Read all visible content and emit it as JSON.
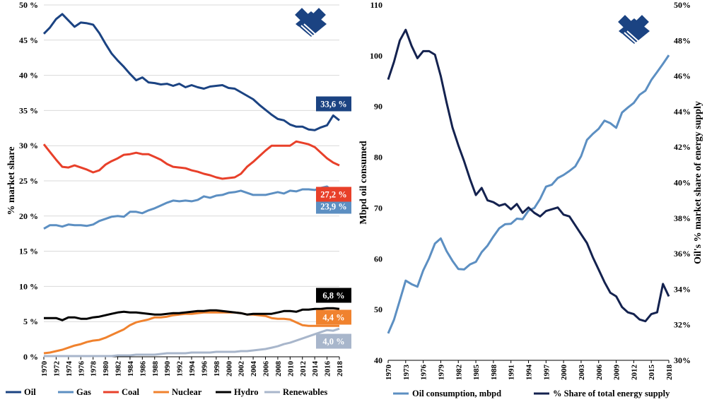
{
  "chart_data": [
    {
      "type": "line",
      "ylabel": "% market share",
      "ylim": [
        0,
        50
      ],
      "yticks": [
        "0 %",
        "5 %",
        "10 %",
        "15 %",
        "20 %",
        "25 %",
        "30 %",
        "35 %",
        "40 %",
        "45 %",
        "50 %"
      ],
      "xticks": [
        "1970",
        "1972",
        "1974",
        "1976",
        "1978",
        "1980",
        "1982",
        "1984",
        "1986",
        "1988",
        "1990",
        "1992",
        "1994",
        "1996",
        "1998",
        "2000",
        "2002",
        "2004",
        "2006",
        "2008",
        "2010",
        "2012",
        "2014",
        "2016",
        "2018"
      ],
      "x": [
        1970,
        1971,
        1972,
        1973,
        1974,
        1975,
        1976,
        1977,
        1978,
        1979,
        1980,
        1981,
        1982,
        1983,
        1984,
        1985,
        1986,
        1987,
        1988,
        1989,
        1990,
        1991,
        1992,
        1993,
        1994,
        1995,
        1996,
        1997,
        1998,
        1999,
        2000,
        2001,
        2002,
        2003,
        2004,
        2005,
        2006,
        2007,
        2008,
        2009,
        2010,
        2011,
        2012,
        2013,
        2014,
        2015,
        2016,
        2017,
        2018
      ],
      "series": [
        {
          "name": "Oil",
          "color": "#1b4382",
          "end_label": "33,6 %",
          "values": [
            45.9,
            46.8,
            48.0,
            48.7,
            47.8,
            46.9,
            47.5,
            47.4,
            47.2,
            46.0,
            44.5,
            43.1,
            42.1,
            41.2,
            40.2,
            39.3,
            39.7,
            39.0,
            38.9,
            38.7,
            38.8,
            38.5,
            38.8,
            38.3,
            38.6,
            38.3,
            38.1,
            38.4,
            38.5,
            38.6,
            38.2,
            38.1,
            37.6,
            37.1,
            36.6,
            35.8,
            35.1,
            34.4,
            33.8,
            33.6,
            33.0,
            32.7,
            32.7,
            32.3,
            32.2,
            32.6,
            32.9,
            34.3,
            33.6
          ]
        },
        {
          "name": "Gas",
          "color": "#5c8fc2",
          "end_label": "23,9 %",
          "values": [
            18.2,
            18.7,
            18.7,
            18.5,
            18.8,
            18.7,
            18.7,
            18.6,
            18.8,
            19.3,
            19.6,
            19.9,
            20.0,
            19.9,
            20.6,
            20.6,
            20.4,
            20.8,
            21.1,
            21.5,
            21.9,
            22.2,
            22.1,
            22.2,
            22.1,
            22.3,
            22.8,
            22.6,
            22.9,
            23.0,
            23.3,
            23.4,
            23.6,
            23.3,
            23.0,
            23.0,
            23.0,
            23.2,
            23.4,
            23.2,
            23.6,
            23.5,
            23.8,
            23.8,
            23.7,
            24.0,
            24.2,
            23.5,
            23.9
          ]
        },
        {
          "name": "Coal",
          "color": "#e8402a",
          "end_label": "27,2 %",
          "values": [
            30.2,
            29.1,
            28.0,
            27.0,
            26.9,
            27.2,
            26.9,
            26.6,
            26.2,
            26.5,
            27.3,
            27.8,
            28.2,
            28.7,
            28.8,
            29.0,
            28.8,
            28.8,
            28.4,
            28.0,
            27.4,
            27.0,
            26.9,
            26.8,
            26.5,
            26.3,
            26.0,
            25.8,
            25.5,
            25.3,
            25.4,
            25.5,
            26.0,
            27.0,
            27.7,
            28.5,
            29.3,
            30.0,
            30.0,
            30.0,
            30.0,
            30.6,
            30.4,
            30.2,
            29.8,
            29.0,
            28.2,
            27.6,
            27.2
          ]
        },
        {
          "name": "Nuclear",
          "color": "#f0822e",
          "end_label": "4,4 %",
          "values": [
            0.5,
            0.6,
            0.8,
            1.0,
            1.3,
            1.6,
            1.8,
            2.1,
            2.3,
            2.4,
            2.7,
            3.1,
            3.5,
            3.9,
            4.5,
            4.9,
            5.1,
            5.3,
            5.6,
            5.6,
            5.7,
            5.9,
            6.0,
            6.1,
            6.1,
            6.2,
            6.3,
            6.3,
            6.3,
            6.3,
            6.3,
            6.3,
            6.2,
            6.0,
            6.0,
            5.9,
            5.8,
            5.5,
            5.4,
            5.4,
            5.3,
            4.9,
            4.5,
            4.4,
            4.4,
            4.4,
            4.4,
            4.4,
            4.4
          ]
        },
        {
          "name": "Hydro",
          "color": "#000000",
          "end_label": "6,8 %",
          "values": [
            5.5,
            5.5,
            5.5,
            5.2,
            5.6,
            5.6,
            5.4,
            5.4,
            5.6,
            5.7,
            5.9,
            6.1,
            6.3,
            6.4,
            6.3,
            6.3,
            6.2,
            6.1,
            6.0,
            6.0,
            6.1,
            6.2,
            6.2,
            6.3,
            6.4,
            6.5,
            6.5,
            6.6,
            6.6,
            6.5,
            6.4,
            6.3,
            6.2,
            6.0,
            6.1,
            6.1,
            6.1,
            6.1,
            6.3,
            6.5,
            6.5,
            6.4,
            6.7,
            6.7,
            6.8,
            6.8,
            6.9,
            6.9,
            6.8
          ]
        },
        {
          "name": "Renewables",
          "color": "#a8b6cb",
          "end_label": "4,0 %",
          "values": [
            0.1,
            0.1,
            0.1,
            0.1,
            0.1,
            0.1,
            0.1,
            0.1,
            0.1,
            0.1,
            0.1,
            0.1,
            0.2,
            0.2,
            0.2,
            0.3,
            0.3,
            0.3,
            0.3,
            0.4,
            0.5,
            0.5,
            0.5,
            0.5,
            0.6,
            0.6,
            0.6,
            0.6,
            0.7,
            0.7,
            0.7,
            0.7,
            0.8,
            0.8,
            0.9,
            1.0,
            1.1,
            1.3,
            1.5,
            1.8,
            2.0,
            2.3,
            2.6,
            2.9,
            3.2,
            3.5,
            3.8,
            3.7,
            4.0
          ]
        }
      ],
      "legend": [
        "Oil",
        "Gas",
        "Coal",
        "Nuclear",
        "Hydro",
        "Renewables"
      ]
    },
    {
      "type": "line",
      "ylabel": "Mbpd oil consumed",
      "y2label": "Oil's % market share of energy supply",
      "ylim": [
        40,
        110
      ],
      "y2lim": [
        30,
        50
      ],
      "yticks": [
        "40",
        "50",
        "60",
        "70",
        "80",
        "90",
        "100",
        "110"
      ],
      "y2ticks": [
        "30%",
        "32%",
        "34%",
        "36%",
        "38%",
        "40%",
        "42%",
        "44%",
        "46%",
        "48%",
        "50%"
      ],
      "xticks": [
        "1970",
        "1973",
        "1976",
        "1979",
        "1982",
        "1985",
        "1988",
        "1991",
        "1994",
        "1997",
        "2000",
        "2003",
        "2006",
        "2009",
        "2012",
        "2015",
        "2018"
      ],
      "x": [
        1970,
        1971,
        1972,
        1973,
        1974,
        1975,
        1976,
        1977,
        1978,
        1979,
        1980,
        1981,
        1982,
        1983,
        1984,
        1985,
        1986,
        1987,
        1988,
        1989,
        1990,
        1991,
        1992,
        1993,
        1994,
        1995,
        1996,
        1997,
        1998,
        1999,
        2000,
        2001,
        2002,
        2003,
        2004,
        2005,
        2006,
        2007,
        2008,
        2009,
        2010,
        2011,
        2012,
        2013,
        2014,
        2015,
        2016,
        2017,
        2018
      ],
      "series": [
        {
          "name": "Oil consumption, mbpd",
          "axis": "left",
          "color": "#5c8fc2",
          "values": [
            45.3,
            48.0,
            51.8,
            55.7,
            55.0,
            54.5,
            57.7,
            60.1,
            63.0,
            64.0,
            61.5,
            59.6,
            58.0,
            57.9,
            58.9,
            59.4,
            61.3,
            62.6,
            64.4,
            66.0,
            66.8,
            66.9,
            67.9,
            67.8,
            69.5,
            70.0,
            71.8,
            74.2,
            74.6,
            75.9,
            76.5,
            77.3,
            78.2,
            80.2,
            83.4,
            84.6,
            85.6,
            87.2,
            86.7,
            85.8,
            88.8,
            89.8,
            90.7,
            92.3,
            93.1,
            95.2,
            96.8,
            98.4,
            100.1
          ]
        },
        {
          "name": "% Share of total energy supply",
          "axis": "right",
          "color": "#14224f",
          "values": [
            45.8,
            46.8,
            48.0,
            48.6,
            47.7,
            47.0,
            47.4,
            47.4,
            47.2,
            46.0,
            44.5,
            43.1,
            42.1,
            41.2,
            40.2,
            39.3,
            39.7,
            39.0,
            38.9,
            38.7,
            38.8,
            38.5,
            38.8,
            38.3,
            38.6,
            38.3,
            38.1,
            38.4,
            38.5,
            38.6,
            38.2,
            38.1,
            37.6,
            37.1,
            36.6,
            35.8,
            35.1,
            34.4,
            33.8,
            33.6,
            33.0,
            32.7,
            32.6,
            32.3,
            32.2,
            32.6,
            32.7,
            34.3,
            33.6
          ]
        }
      ],
      "legend": [
        "Oil consumption, mbpd",
        "% Share of total energy supply"
      ]
    }
  ]
}
